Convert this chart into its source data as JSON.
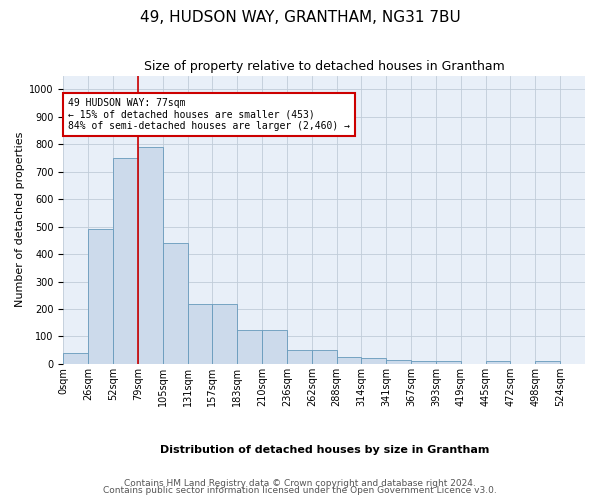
{
  "title": "49, HUDSON WAY, GRANTHAM, NG31 7BU",
  "subtitle": "Size of property relative to detached houses in Grantham",
  "xlabel": "Distribution of detached houses by size in Grantham",
  "ylabel": "Number of detached properties",
  "bin_labels": [
    "0sqm",
    "26sqm",
    "52sqm",
    "79sqm",
    "105sqm",
    "131sqm",
    "157sqm",
    "183sqm",
    "210sqm",
    "236sqm",
    "262sqm",
    "288sqm",
    "314sqm",
    "341sqm",
    "367sqm",
    "393sqm",
    "419sqm",
    "445sqm",
    "472sqm",
    "498sqm",
    "524sqm"
  ],
  "bar_values": [
    40,
    490,
    750,
    790,
    440,
    220,
    220,
    125,
    125,
    50,
    50,
    25,
    20,
    15,
    10,
    10,
    0,
    10,
    0,
    10,
    0
  ],
  "bar_color": "#ccdaeb",
  "bar_edge_color": "#6699bb",
  "vline_x_index": 3,
  "vline_color": "#cc0000",
  "annotation_text": "49 HUDSON WAY: 77sqm\n← 15% of detached houses are smaller (453)\n84% of semi-detached houses are larger (2,460) →",
  "annotation_box_color": "#cc0000",
  "ylim": [
    0,
    1050
  ],
  "yticks": [
    0,
    100,
    200,
    300,
    400,
    500,
    600,
    700,
    800,
    900,
    1000
  ],
  "footer1": "Contains HM Land Registry data © Crown copyright and database right 2024.",
  "footer2": "Contains public sector information licensed under the Open Government Licence v3.0.",
  "bg_color": "#ffffff",
  "plot_bg_color": "#e8eff8",
  "grid_color": "#c0ccd8",
  "title_fontsize": 11,
  "subtitle_fontsize": 9,
  "ylabel_fontsize": 8,
  "xlabel_fontsize": 8,
  "tick_fontsize": 7,
  "footer_fontsize": 6.5
}
